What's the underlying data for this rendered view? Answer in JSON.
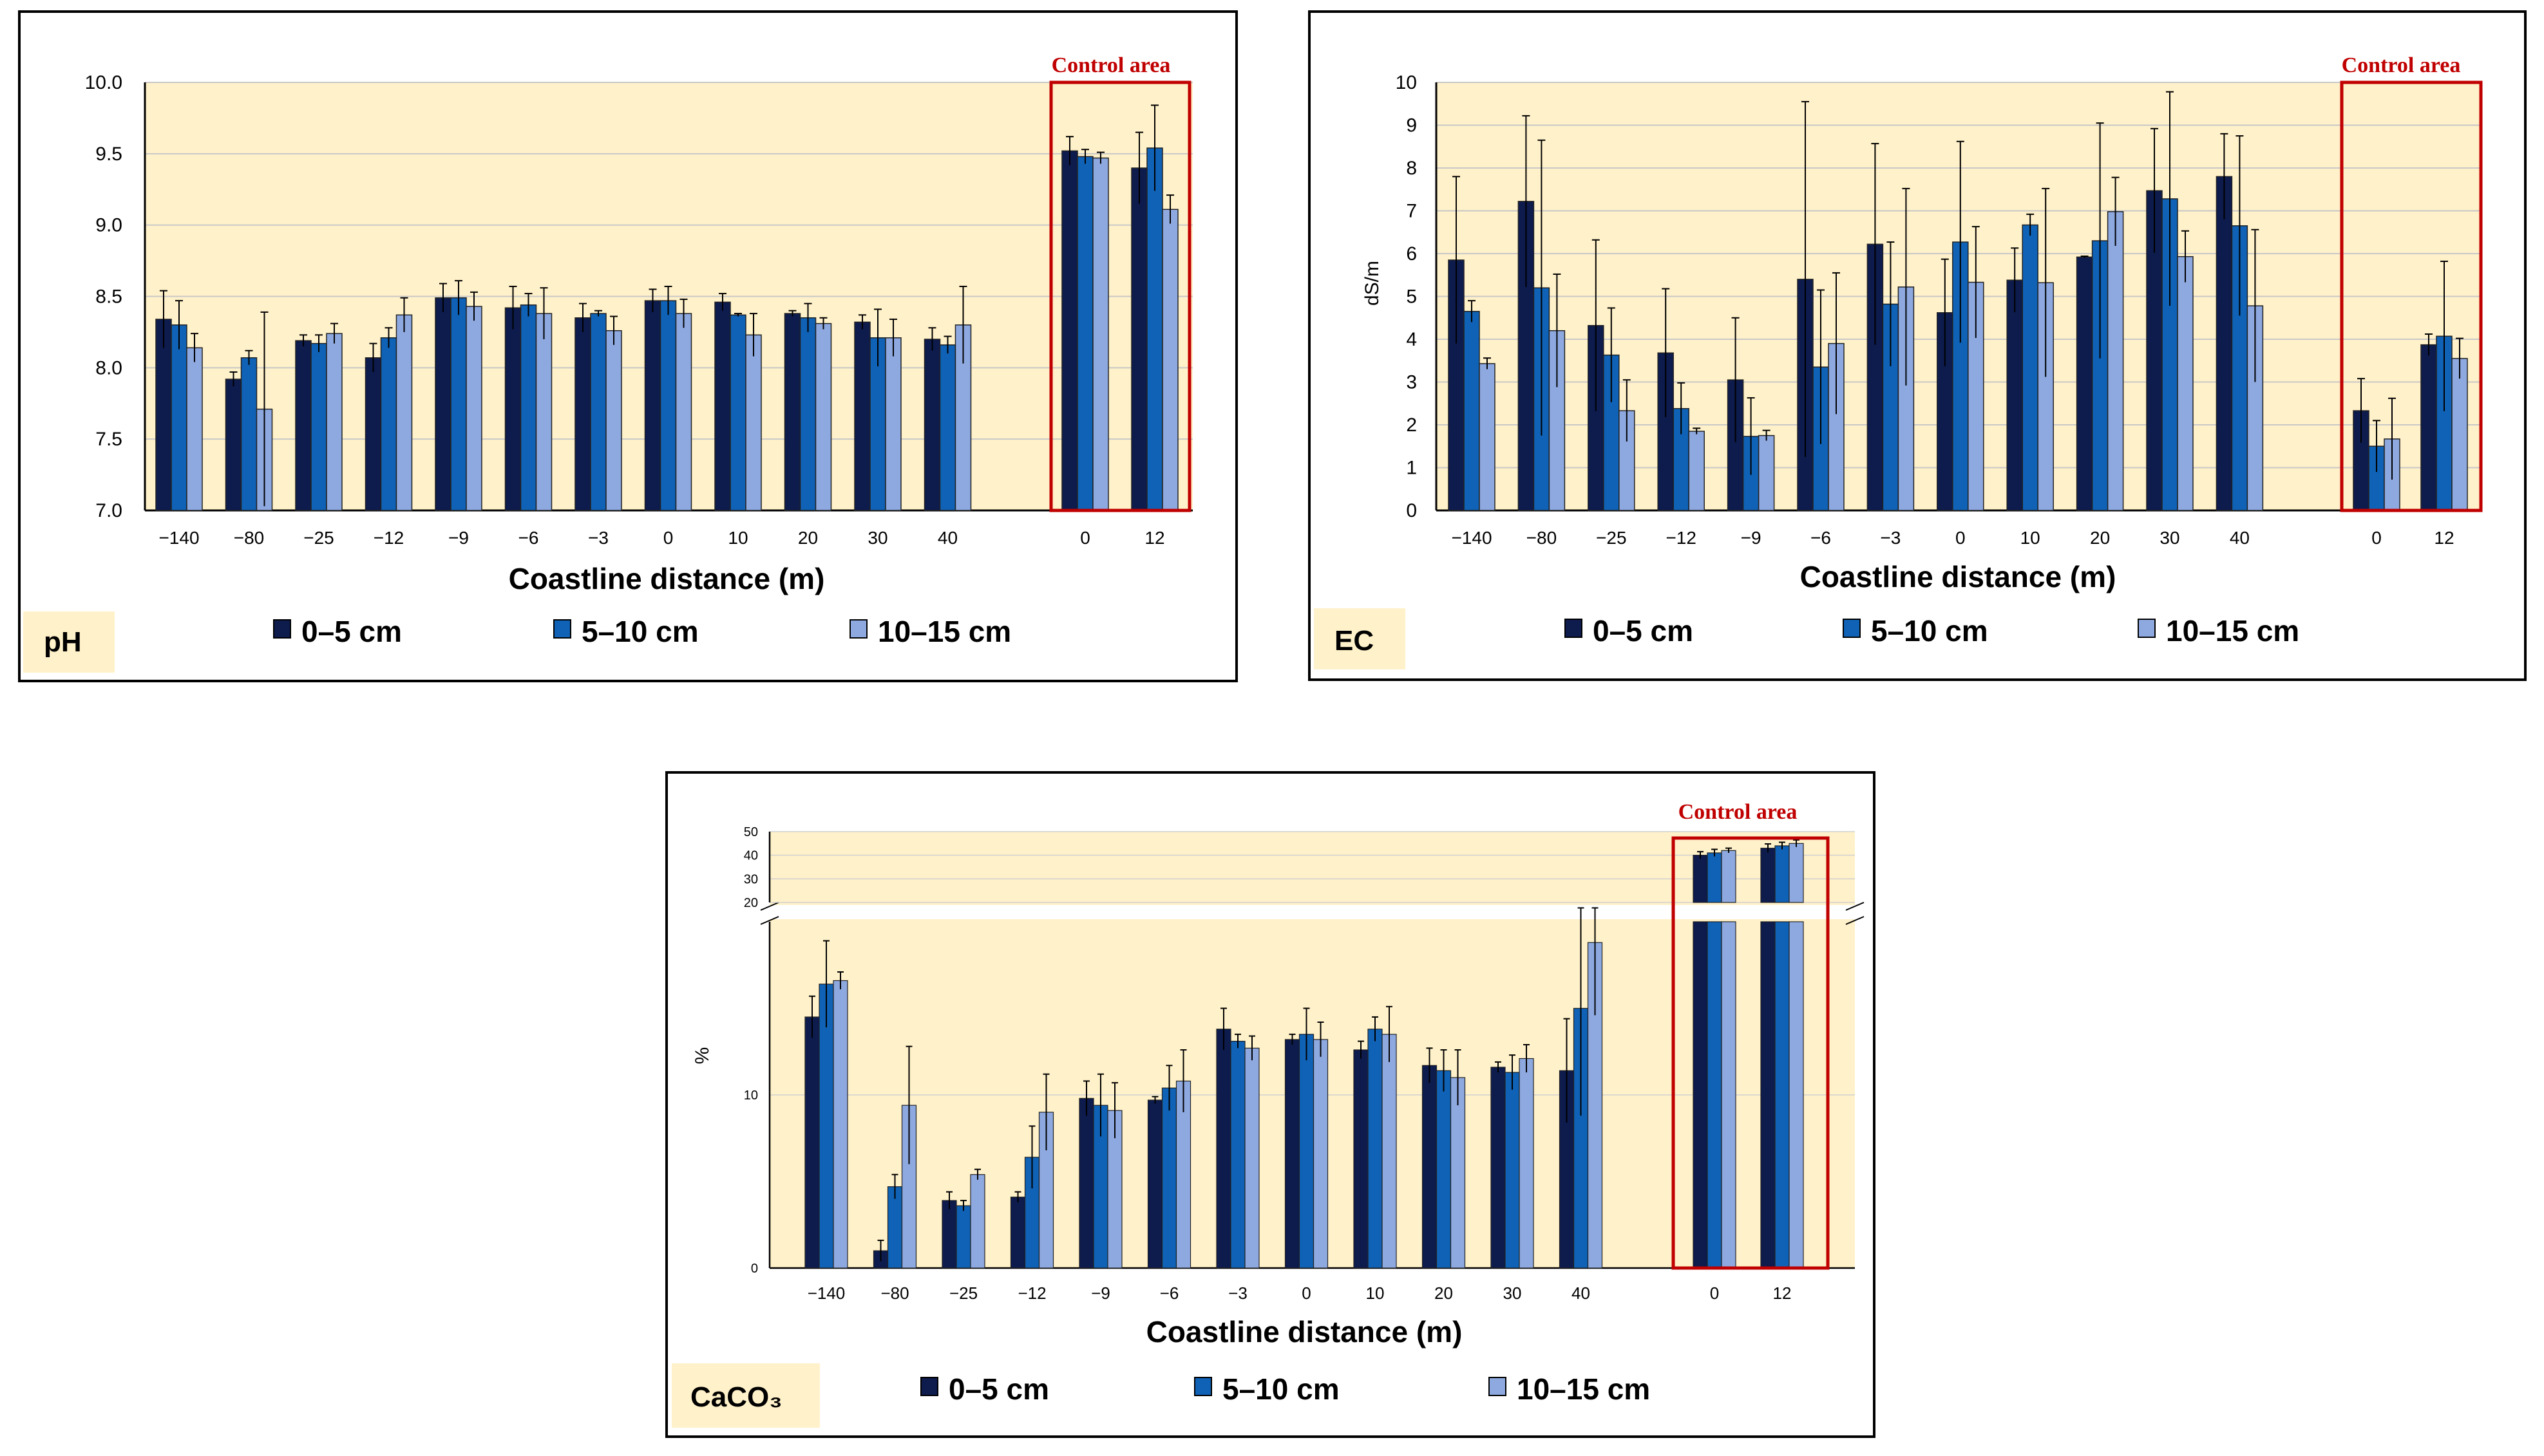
{
  "legend": {
    "l1": "0–5 cm",
    "l2": "5–10 cm",
    "l3": "10–15 cm"
  },
  "colors": {
    "s1": "#0d1b4d",
    "s2": "#0f62b5",
    "s3": "#8ea9e0",
    "plot_bg": "#fff1c9",
    "frame": "#c00000"
  },
  "chart_data": [
    {
      "type": "bar",
      "title": "pH",
      "xlabel": "Coastline distance (m)",
      "ylabel": "",
      "ylim": [
        7.0,
        10.0
      ],
      "yticks": [
        "7.0",
        "7.5",
        "8.0",
        "8.5",
        "9.0",
        "9.5",
        "10.0"
      ],
      "control_label": "Control area",
      "categories": [
        "−140",
        "−80",
        "−25",
        "−12",
        "−9",
        "−6",
        "−3",
        "0",
        "10",
        "20",
        "30",
        "40"
      ],
      "control_categories": [
        "0",
        "12"
      ],
      "series": [
        {
          "name": "0–5 cm",
          "values": [
            8.34,
            7.92,
            8.19,
            8.07,
            8.49,
            8.42,
            8.35,
            8.47,
            8.46,
            8.38,
            8.32,
            8.2
          ],
          "control": [
            9.52,
            9.4
          ],
          "err": [
            0.2,
            0.05,
            0.04,
            0.1,
            0.1,
            0.15,
            0.1,
            0.08,
            0.06,
            0.02,
            0.05,
            0.08
          ],
          "control_err": [
            0.1,
            0.25
          ]
        },
        {
          "name": "5–10 cm",
          "values": [
            8.3,
            8.07,
            8.17,
            8.21,
            8.49,
            8.44,
            8.38,
            8.47,
            8.37,
            8.35,
            8.21,
            8.16
          ],
          "control": [
            9.48,
            9.54
          ],
          "err": [
            0.17,
            0.05,
            0.06,
            0.07,
            0.12,
            0.08,
            0.02,
            0.1,
            0.01,
            0.1,
            0.2,
            0.06
          ],
          "control_err": [
            0.05,
            0.3
          ]
        },
        {
          "name": "10–15 cm",
          "values": [
            8.14,
            7.71,
            8.24,
            8.37,
            8.43,
            8.38,
            8.26,
            8.38,
            8.23,
            8.31,
            8.21,
            8.3
          ],
          "control": [
            9.47,
            9.11
          ],
          "err": [
            0.1,
            0.68,
            0.07,
            0.12,
            0.1,
            0.18,
            0.1,
            0.1,
            0.15,
            0.04,
            0.13,
            0.27
          ],
          "control_err": [
            0.04,
            0.1
          ]
        }
      ]
    },
    {
      "type": "bar",
      "title": "EC",
      "xlabel": "Coastline distance (m)",
      "ylabel": "dS/m",
      "ylim": [
        0,
        10
      ],
      "yticks": [
        "0",
        "1",
        "2",
        "3",
        "4",
        "5",
        "6",
        "7",
        "8",
        "9",
        "10"
      ],
      "control_label": "Control area",
      "categories": [
        "−140",
        "−80",
        "−25",
        "−12",
        "−9",
        "−6",
        "−3",
        "0",
        "10",
        "20",
        "30",
        "40"
      ],
      "control_categories": [
        "0",
        "12"
      ],
      "series": [
        {
          "name": "0–5 cm",
          "values": [
            5.85,
            7.22,
            4.32,
            3.68,
            3.05,
            5.4,
            6.22,
            4.62,
            5.38,
            5.92,
            7.47,
            7.8
          ],
          "control": [
            2.33,
            3.87
          ],
          "err": [
            1.95,
            2.0,
            2.0,
            1.5,
            1.45,
            4.15,
            2.35,
            1.25,
            0.75,
            0.02,
            1.45,
            1.0
          ],
          "control_err": [
            0.75,
            0.25
          ]
        },
        {
          "name": "5–10 cm",
          "values": [
            4.65,
            5.2,
            3.63,
            2.38,
            1.73,
            3.35,
            4.82,
            6.27,
            6.67,
            6.3,
            7.28,
            6.65
          ],
          "control": [
            1.5,
            4.07
          ],
          "err": [
            0.25,
            3.45,
            1.1,
            0.6,
            0.9,
            1.8,
            1.45,
            2.35,
            0.25,
            2.75,
            2.5,
            2.1
          ],
          "control_err": [
            0.6,
            1.75
          ]
        },
        {
          "name": "10–15 cm",
          "values": [
            3.43,
            4.2,
            2.33,
            1.85,
            1.75,
            3.9,
            5.22,
            5.33,
            5.32,
            6.98,
            5.93,
            4.78
          ],
          "control": [
            1.67,
            3.55
          ],
          "err": [
            0.13,
            1.32,
            0.72,
            0.07,
            0.12,
            1.65,
            2.3,
            1.3,
            2.2,
            0.8,
            0.6,
            1.78
          ],
          "control_err": [
            0.95,
            0.47
          ]
        }
      ]
    },
    {
      "type": "bar",
      "title": "CaCO₃",
      "xlabel": "Coastline distance (m)",
      "ylabel": "%",
      "ylim_lower": [
        0,
        20
      ],
      "ylim_upper": [
        20,
        50
      ],
      "yticks_lower": [
        "0",
        "10"
      ],
      "yticks_upper": [
        "20",
        "30",
        "40",
        "50"
      ],
      "axis_break": true,
      "control_label": "Control area",
      "categories": [
        "−140",
        "−80",
        "−25",
        "−12",
        "−9",
        "−6",
        "−3",
        "0",
        "10",
        "20",
        "30",
        "40"
      ],
      "control_categories": [
        "0",
        "12"
      ],
      "series": [
        {
          "name": "0–5 cm",
          "values": [
            14.5,
            1.0,
            3.9,
            4.1,
            9.8,
            9.7,
            13.8,
            13.2,
            12.6,
            11.7,
            11.6,
            11.4
          ],
          "control": [
            40,
            43
          ],
          "err": [
            1.2,
            0.6,
            0.5,
            0.3,
            1.0,
            0.2,
            1.2,
            0.3,
            0.5,
            1.0,
            0.3,
            3.0
          ],
          "control_err": [
            1.5,
            1.8
          ]
        },
        {
          "name": "5–10 cm",
          "values": [
            16.4,
            4.7,
            3.6,
            6.4,
            9.4,
            10.4,
            13.1,
            13.5,
            13.8,
            11.4,
            11.3,
            15.0
          ],
          "control": [
            41,
            44
          ],
          "err": [
            2.5,
            0.7,
            0.3,
            1.8,
            1.8,
            1.3,
            0.4,
            1.5,
            0.7,
            1.2,
            1.0,
            6.2
          ],
          "control_err": [
            1.5,
            1.5
          ]
        },
        {
          "name": "10–15 cm",
          "values": [
            16.6,
            9.4,
            5.4,
            9.0,
            9.1,
            10.8,
            12.7,
            13.2,
            13.5,
            11.0,
            12.1,
            18.8
          ],
          "control": [
            42,
            45
          ],
          "err": [
            0.5,
            3.4,
            0.3,
            2.2,
            1.6,
            1.8,
            0.7,
            1.0,
            1.6,
            1.6,
            0.8,
            4.2
          ],
          "control_err": [
            1.0,
            1.5
          ]
        }
      ]
    }
  ]
}
